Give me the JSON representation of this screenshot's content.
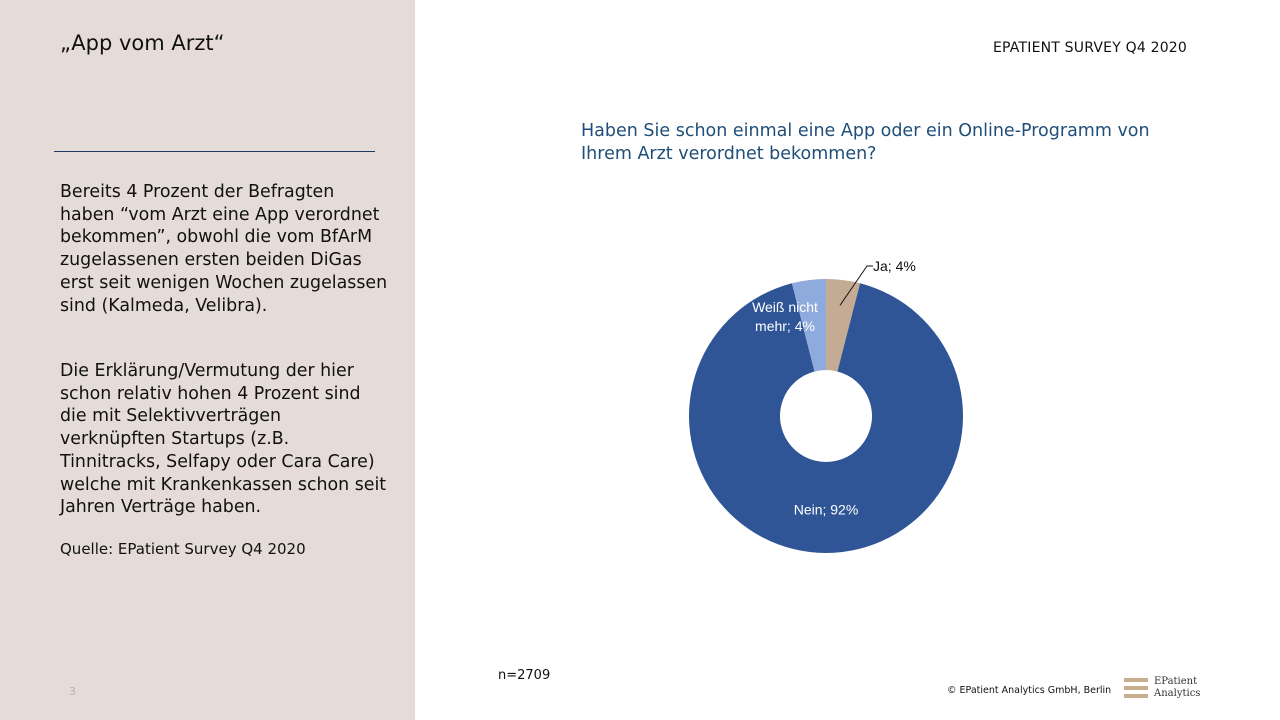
{
  "slide": {
    "title": "„App vom Arzt“",
    "page_number": "3",
    "paragraph1": "Bereits 4 Prozent der Befragten haben “vom Arzt eine App verordnet bekommen”, obwohl die vom BfArM zugelassenen ersten beiden DiGas erst seit wenigen Wochen zugelassen sind (Kalmeda, Velibra).",
    "paragraph2": "Die Erklärung/Vermutung der hier schon relativ hohen 4 Prozent sind die mit Selektivverträgen verknüpften Startups (z.B. Tinnitracks, Selfapy oder Cara Care) welche mit Krankenkassen schon seit Jahren Verträge haben.",
    "source": "Quelle: EPatient Survey Q4 2020",
    "survey_label": "EPATIENT SURVEY Q4  2020",
    "sample_size": "n=2709",
    "copyright": "© EPatient Analytics GmbH, Berlin",
    "logo_line1": "EPatient",
    "logo_line2": "Analytics"
  },
  "colors": {
    "left_panel": "#e6dcd7",
    "question_text": "#1f4e79",
    "divider": "#1f3864",
    "logo_accent": "#c9ad8f"
  },
  "chart_data": {
    "type": "pie",
    "variant": "donut",
    "title": "Haben Sie schon einmal eine App oder ein Online-Programm von Ihrem Arzt verordnet bekommen?",
    "slices": [
      {
        "label": "Ja; 4%",
        "value": 4,
        "color": "#c4ab94",
        "label_color": "#111111",
        "label_placement": "outside-leader"
      },
      {
        "label": "Nein; 92%",
        "value": 92,
        "color": "#2f5597",
        "label_color": "#ffffff",
        "label_placement": "inside"
      },
      {
        "label_lines": [
          "Weiß nicht",
          "mehr; 4%"
        ],
        "label": "Weiß nicht mehr; 4%",
        "value": 4,
        "color": "#8faadc",
        "label_color": "#ffffff",
        "label_placement": "inside"
      }
    ]
  }
}
